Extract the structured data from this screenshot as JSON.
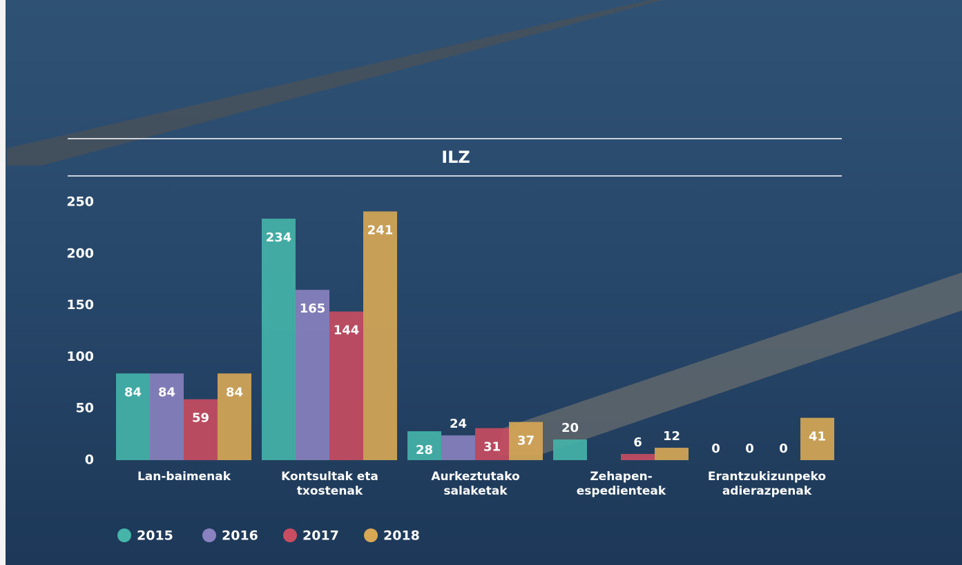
{
  "chart_data": {
    "type": "bar",
    "title": "ILZ",
    "categories": [
      "Lan-baimenak",
      "Kontsultak eta txostenak",
      "Aurkeztutako salaketak",
      "Zehapen-espedienteak",
      "Erantzukizunpeko adierazpenak"
    ],
    "series": [
      {
        "name": "2015",
        "color": "#45b5aa",
        "values": [
          84,
          234,
          28,
          20,
          0
        ]
      },
      {
        "name": "2016",
        "color": "#8a82c0",
        "values": [
          84,
          165,
          24,
          null,
          0
        ]
      },
      {
        "name": "2017",
        "color": "#c94d60",
        "values": [
          59,
          144,
          31,
          6,
          0
        ]
      },
      {
        "name": "2018",
        "color": "#d9a855",
        "values": [
          84,
          241,
          37,
          12,
          41
        ]
      }
    ],
    "ylim": [
      0,
      250
    ],
    "yticks": [
      0,
      50,
      100,
      150,
      200,
      250
    ],
    "grid": false,
    "legend": "bottom"
  }
}
